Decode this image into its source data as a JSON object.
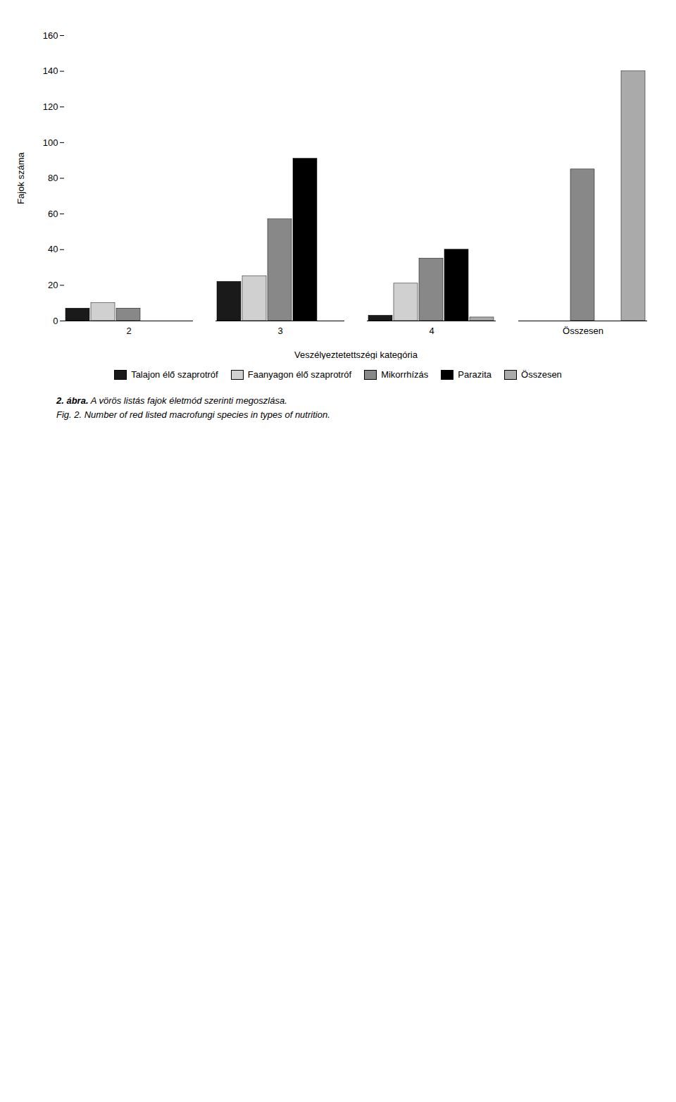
{
  "chart_data": {
    "type": "bar",
    "categories": [
      "2",
      "3",
      "4",
      "Összesen"
    ],
    "series": [
      {
        "name": "Talajon élő szaprotróf",
        "color": "#1a1a1a",
        "values": [
          7,
          22,
          3,
          0
        ]
      },
      {
        "name": "Faanyagon élő szaprotróf",
        "color": "#d0d0d0",
        "values": [
          10,
          25,
          21,
          0
        ]
      },
      {
        "name": "Mikorrhízás",
        "color": "#888888",
        "values": [
          7,
          57,
          35,
          85
        ]
      },
      {
        "name": "Parazita",
        "color": "#000000",
        "values": [
          0,
          91,
          40,
          0
        ]
      },
      {
        "name": "Összesen",
        "color": "#aaaaaa",
        "values": [
          0,
          0,
          2,
          140
        ]
      }
    ],
    "xlabel": "Veszélyeztetettszégi kategória",
    "ylabel": "Fajok száma",
    "ylim": [
      0,
      160
    ],
    "yticks": [
      0,
      20,
      40,
      60,
      80,
      100,
      120,
      140,
      160
    ],
    "grid": false,
    "legend": "bottom",
    "annotations": [
      "2. ábra.",
      "A vörös listás fajok életmód szerinti megoszlása.",
      "Fig. 2. Number of red listed macrofungi species in types of nutrition."
    ]
  }
}
